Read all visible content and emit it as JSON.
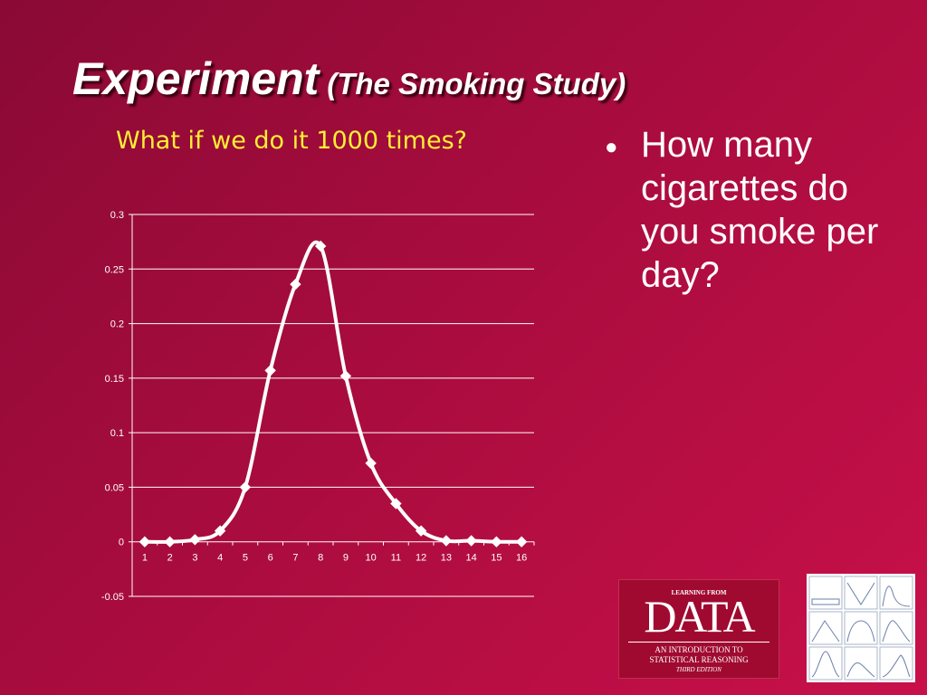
{
  "slide": {
    "title_main": "Experiment",
    "title_sub": "(The Smoking Study)",
    "subtitle": "What if we do it 1000 times?",
    "bullet": "How many cigarettes do you smoke per day?"
  },
  "logo": {
    "top_text": "LEARNING FROM",
    "big_text": "DATA",
    "line1": "AN INTRODUCTION TO",
    "line2": "STATISTICAL REASONING",
    "line3": "THIRD EDITION"
  },
  "colors": {
    "background": "#a80c3e",
    "subtitle": "#ffee33",
    "series": "#ffffff"
  },
  "chart_data": {
    "type": "line",
    "title": "",
    "xlabel": "",
    "ylabel": "",
    "categories": [
      "1",
      "2",
      "3",
      "4",
      "5",
      "6",
      "7",
      "8",
      "9",
      "10",
      "11",
      "12",
      "13",
      "14",
      "15",
      "16"
    ],
    "series": [
      {
        "values": [
          0,
          0,
          0.002,
          0.01,
          0.05,
          0.157,
          0.236,
          0.271,
          0.152,
          0.072,
          0.035,
          0.01,
          0.001,
          0.001,
          0,
          0
        ],
        "marker": "diamond",
        "smooth": true
      }
    ],
    "ylim": [
      -0.05,
      0.3
    ],
    "yticks": [
      "-0.05",
      "0",
      "0.05",
      "0.1",
      "0.15",
      "0.2",
      "0.25",
      "0.3"
    ],
    "grid": true,
    "legend": "none"
  }
}
